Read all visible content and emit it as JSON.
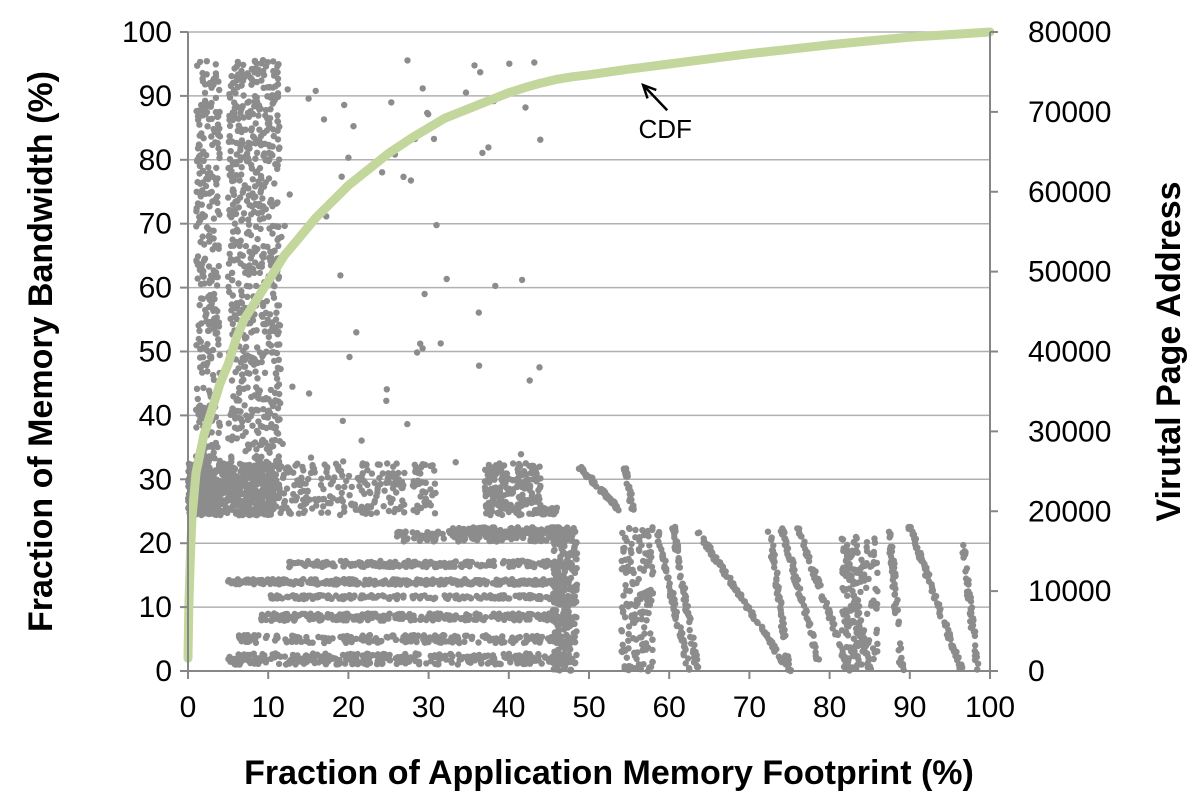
{
  "chart_data": {
    "type": "scatter",
    "title": "",
    "xlabel": "Fraction of Application Memory Footprint (%)",
    "ylabel": "Fraction of Memory Bandwidth (%)",
    "y2label": "Virutal Page Address",
    "xlim": [
      0,
      100
    ],
    "ylim": [
      0,
      100
    ],
    "y2lim": [
      0,
      80000
    ],
    "x_ticks": [
      0,
      10,
      20,
      30,
      40,
      50,
      60,
      70,
      80,
      90,
      100
    ],
    "y_ticks": [
      0,
      10,
      20,
      30,
      40,
      50,
      60,
      70,
      80,
      90,
      100
    ],
    "y2_ticks": [
      0,
      10000,
      20000,
      30000,
      40000,
      50000,
      60000,
      70000,
      80000
    ],
    "grid": "horizontal",
    "colors": {
      "cdf": "#c3d69b",
      "scatter": "#8c8c8c",
      "grid": "#b0b0b0"
    },
    "series": [
      {
        "name": "CDF",
        "axis": "left",
        "style": "line",
        "x": [
          0,
          0.1,
          0.3,
          0.5,
          1,
          1.5,
          2,
          3,
          4,
          5,
          6,
          7,
          8,
          9,
          10,
          12,
          14,
          16,
          18,
          20,
          22,
          25,
          28,
          30,
          32,
          35,
          38,
          40,
          42,
          44,
          46,
          48,
          50,
          55,
          60,
          65,
          70,
          75,
          80,
          85,
          90,
          95,
          100
        ],
        "y": [
          2,
          10,
          18,
          24,
          31,
          34,
          37,
          41,
          45,
          48,
          52,
          55,
          57,
          59,
          61,
          65,
          68,
          71,
          73.5,
          76,
          78,
          81,
          83.5,
          85,
          86.5,
          88,
          89.5,
          90.5,
          91.3,
          92,
          92.6,
          93,
          93.3,
          94.2,
          95,
          95.8,
          96.6,
          97.3,
          98,
          98.6,
          99.2,
          99.6,
          100
        ]
      },
      {
        "name": "",
        "axis": "right",
        "style": "points",
        "clusters": [
          {
            "x": [
              0,
              2.5
            ],
            "y": [
              19500,
              26000
            ],
            "n": 200
          },
          {
            "x": [
              2,
              11
            ],
            "y": [
              19500,
              26000
            ],
            "n": 520
          },
          {
            "x": [
              1,
              4
            ],
            "y": [
              26000,
              76500
            ],
            "n": 280
          },
          {
            "x": [
              5,
              11.5
            ],
            "y": [
              26000,
              76500
            ],
            "n": 620
          },
          {
            "x": [
              11,
              16
            ],
            "y": [
              19500,
              26000
            ],
            "n": 70
          },
          {
            "x": [
              16,
              27
            ],
            "y": [
              19500,
              26000
            ],
            "n": 130
          },
          {
            "x": [
              28,
              31
            ],
            "y": [
              19500,
              26000
            ],
            "n": 40
          },
          {
            "x": [
              37,
              44
            ],
            "y": [
              19500,
              26000
            ],
            "n": 210
          },
          {
            "x": [
              44,
              46
            ],
            "y": [
              19500,
              20500
            ],
            "n": 30
          },
          {
            "x": [
              5,
              48
            ],
            "y": [
              800,
              2200
            ],
            "n": 320
          },
          {
            "x": [
              6,
              48
            ],
            "y": [
              3500,
              4500
            ],
            "n": 200
          },
          {
            "x": [
              9,
              48
            ],
            "y": [
              6300,
              7200
            ],
            "n": 300
          },
          {
            "x": [
              10,
              48
            ],
            "y": [
              9000,
              9500
            ],
            "n": 160
          },
          {
            "x": [
              5,
              48
            ],
            "y": [
              10800,
              11500
            ],
            "n": 320
          },
          {
            "x": [
              12,
              48
            ],
            "y": [
              13000,
              13800
            ],
            "n": 200
          },
          {
            "x": [
              26,
              48
            ],
            "y": [
              16200,
              17500
            ],
            "n": 160
          },
          {
            "x": [
              33,
              48
            ],
            "y": [
              17200,
              18000
            ],
            "n": 80
          },
          {
            "x": [
              45.5,
              48.5
            ],
            "y": [
              0,
              18000
            ],
            "n": 220
          },
          {
            "x": [
              54,
              58
            ],
            "y": [
              0,
              18000
            ],
            "n": 150
          },
          {
            "x": [
              81.5,
              86
            ],
            "y": [
              0,
              17000
            ],
            "n": 150
          },
          {
            "x": [
              11,
              45
            ],
            "y": [
              25000,
              76500
            ],
            "n": 65
          }
        ],
        "diagonals": [
          {
            "from": [
              48.8,
              25500
            ],
            "to": [
              54,
              20000
            ],
            "n": 60
          },
          {
            "from": [
              54.5,
              25500
            ],
            "to": [
              55.5,
              20000
            ],
            "n": 25
          },
          {
            "from": [
              58.5,
              17500
            ],
            "to": [
              62.5,
              0
            ],
            "n": 70
          },
          {
            "from": [
              60.5,
              18000
            ],
            "to": [
              63.5,
              0
            ],
            "n": 70
          },
          {
            "from": [
              63.5,
              17500
            ],
            "to": [
              75,
              0
            ],
            "n": 110
          },
          {
            "from": [
              72.5,
              17500
            ],
            "to": [
              75,
              0
            ],
            "n": 60
          },
          {
            "from": [
              74,
              18000
            ],
            "to": [
              79,
              0
            ],
            "n": 70
          },
          {
            "from": [
              76,
              18000
            ],
            "to": [
              82.5,
              0
            ],
            "n": 70
          },
          {
            "from": [
              81.5,
              17000
            ],
            "to": [
              85,
              0
            ],
            "n": 60
          },
          {
            "from": [
              87.5,
              17500
            ],
            "to": [
              89,
              0
            ],
            "n": 50
          },
          {
            "from": [
              90,
              18000
            ],
            "to": [
              96.5,
              0
            ],
            "n": 80
          },
          {
            "from": [
              96.5,
              17000
            ],
            "to": [
              98.5,
              0
            ],
            "n": 50
          }
        ]
      }
    ],
    "annotations": [
      {
        "text": "CDF",
        "x": 59.5,
        "y": 84,
        "arrow_to": [
          56.5,
          92
        ]
      }
    ]
  }
}
